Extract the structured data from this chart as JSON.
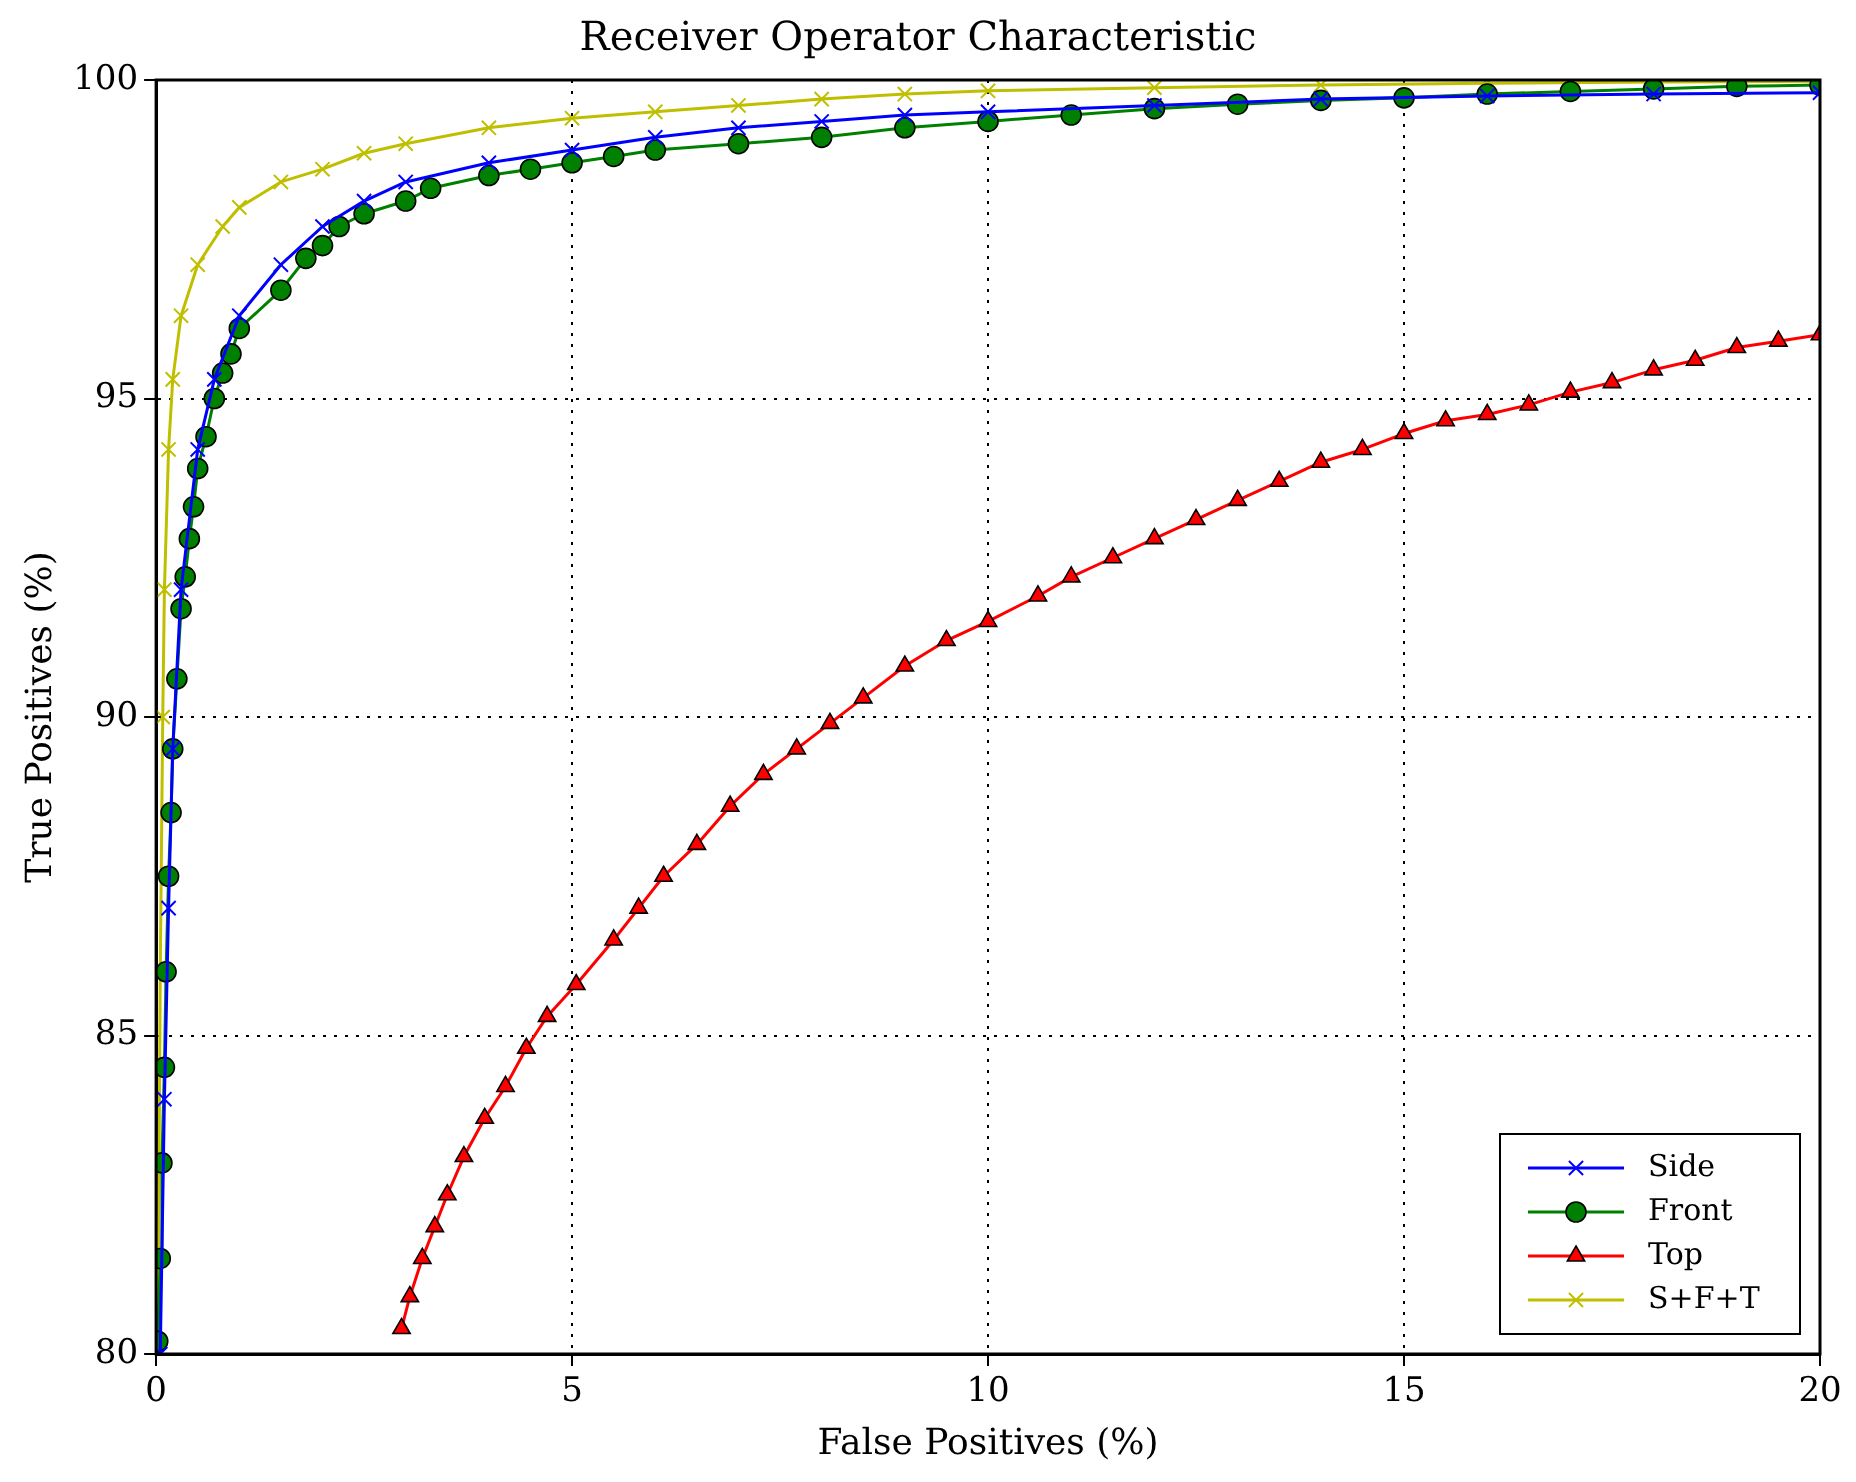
{
  "chart_data": {
    "type": "line",
    "title": "Receiver Operator Characteristic",
    "xlabel": "False Positives (%)",
    "ylabel": "True Positives (%)",
    "xlim": [
      0,
      20
    ],
    "xticks": [
      0,
      5,
      10,
      15,
      20
    ],
    "ylim": [
      80,
      100
    ],
    "yticks": [
      80,
      85,
      90,
      95,
      100
    ],
    "grid": true,
    "legend": "bottom right",
    "line_style": "solid",
    "series": [
      {
        "name": "Side",
        "color": "#0000ff",
        "marker": "cross",
        "x": [
          0.05,
          0.1,
          0.15,
          0.2,
          0.3,
          0.5,
          0.7,
          1,
          1.5,
          2,
          2.5,
          3,
          4,
          5,
          6,
          7,
          8,
          9,
          10,
          12,
          14,
          16,
          18,
          20
        ],
        "values": [
          80,
          84,
          87,
          89.5,
          92,
          94.2,
          95.3,
          96.3,
          97.1,
          97.7,
          98.1,
          98.4,
          98.7,
          98.9,
          99.1,
          99.25,
          99.35,
          99.45,
          99.5,
          99.6,
          99.7,
          99.75,
          99.78,
          99.8
        ]
      },
      {
        "name": "Front",
        "color": "#008000",
        "marker": "circle",
        "x": [
          0.02,
          0.05,
          0.07,
          0.1,
          0.12,
          0.15,
          0.18,
          0.2,
          0.25,
          0.3,
          0.35,
          0.4,
          0.45,
          0.5,
          0.6,
          0.7,
          0.8,
          0.9,
          1,
          1.5,
          1.8,
          2,
          2.2,
          2.5,
          3,
          3.3,
          4,
          4.5,
          5,
          5.5,
          6,
          7,
          8,
          9,
          10,
          11,
          12,
          13,
          14,
          15,
          16,
          17,
          18,
          19,
          20
        ],
        "values": [
          80.2,
          81.5,
          83,
          84.5,
          86,
          87.5,
          88.5,
          89.5,
          90.6,
          91.7,
          92.2,
          92.8,
          93.3,
          93.9,
          94.4,
          95,
          95.4,
          95.7,
          96.1,
          96.7,
          97.2,
          97.4,
          97.7,
          97.9,
          98.1,
          98.3,
          98.5,
          98.6,
          98.7,
          98.8,
          98.9,
          99,
          99.1,
          99.25,
          99.35,
          99.45,
          99.55,
          99.62,
          99.68,
          99.72,
          99.78,
          99.82,
          99.86,
          99.9,
          99.92
        ]
      },
      {
        "name": "Top",
        "color": "#ff0000",
        "marker": "triangle",
        "x": [
          2.95,
          3.05,
          3.2,
          3.35,
          3.5,
          3.7,
          3.95,
          4.2,
          4.45,
          4.7,
          5.05,
          5.5,
          5.8,
          6.1,
          6.5,
          6.9,
          7.3,
          7.7,
          8.1,
          8.5,
          9,
          9.5,
          10,
          10.6,
          11,
          11.5,
          12,
          12.5,
          13,
          13.5,
          14,
          14.5,
          15,
          15.5,
          16,
          16.5,
          17,
          17.5,
          18,
          18.5,
          19,
          19.5,
          20
        ],
        "values": [
          80.4,
          80.9,
          81.5,
          82,
          82.5,
          83.1,
          83.7,
          84.2,
          84.8,
          85.3,
          85.8,
          86.5,
          87,
          87.5,
          88,
          88.6,
          89.1,
          89.5,
          89.9,
          90.3,
          90.8,
          91.2,
          91.5,
          91.9,
          92.2,
          92.5,
          92.8,
          93.1,
          93.4,
          93.7,
          94,
          94.2,
          94.45,
          94.65,
          94.75,
          94.9,
          95.1,
          95.25,
          95.45,
          95.6,
          95.8,
          95.9,
          96
        ]
      },
      {
        "name": "S+F+T",
        "color": "#bfbf00",
        "marker": "cross",
        "x": [
          0.02,
          0.05,
          0.08,
          0.1,
          0.15,
          0.2,
          0.3,
          0.5,
          0.8,
          1,
          1.5,
          2,
          2.5,
          3,
          4,
          5,
          6,
          7,
          8,
          9,
          10,
          12,
          14,
          16,
          18,
          20
        ],
        "values": [
          80,
          86,
          90,
          92,
          94.2,
          95.3,
          96.3,
          97.1,
          97.7,
          98,
          98.4,
          98.6,
          98.85,
          99,
          99.25,
          99.4,
          99.5,
          99.6,
          99.7,
          99.78,
          99.83,
          99.88,
          99.92,
          99.95,
          99.97,
          99.98
        ]
      }
    ]
  }
}
